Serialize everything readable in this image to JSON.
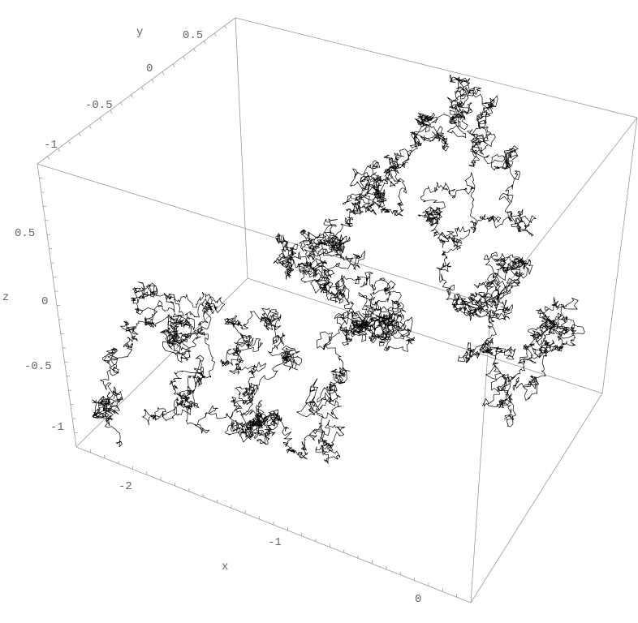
{
  "chart_data": {
    "type": "line3d",
    "title": "",
    "xlabel": "x",
    "ylabel": "y",
    "zlabel": "z",
    "xlim": [
      -2.45,
      0.3
    ],
    "ylim": [
      -1.2,
      0.65
    ],
    "zlim": [
      -1.2,
      0.85
    ],
    "x_ticks": [
      "-2",
      "-1",
      "0"
    ],
    "y_ticks": [
      "-1",
      "-0.5",
      "0",
      "0.5"
    ],
    "z_ticks": [
      "0.5",
      "0",
      "-0.5",
      "-1"
    ],
    "boxed": true,
    "grid": false,
    "colors": {
      "path": "#000000",
      "box": "#999999",
      "labels": "#666666"
    }
  }
}
